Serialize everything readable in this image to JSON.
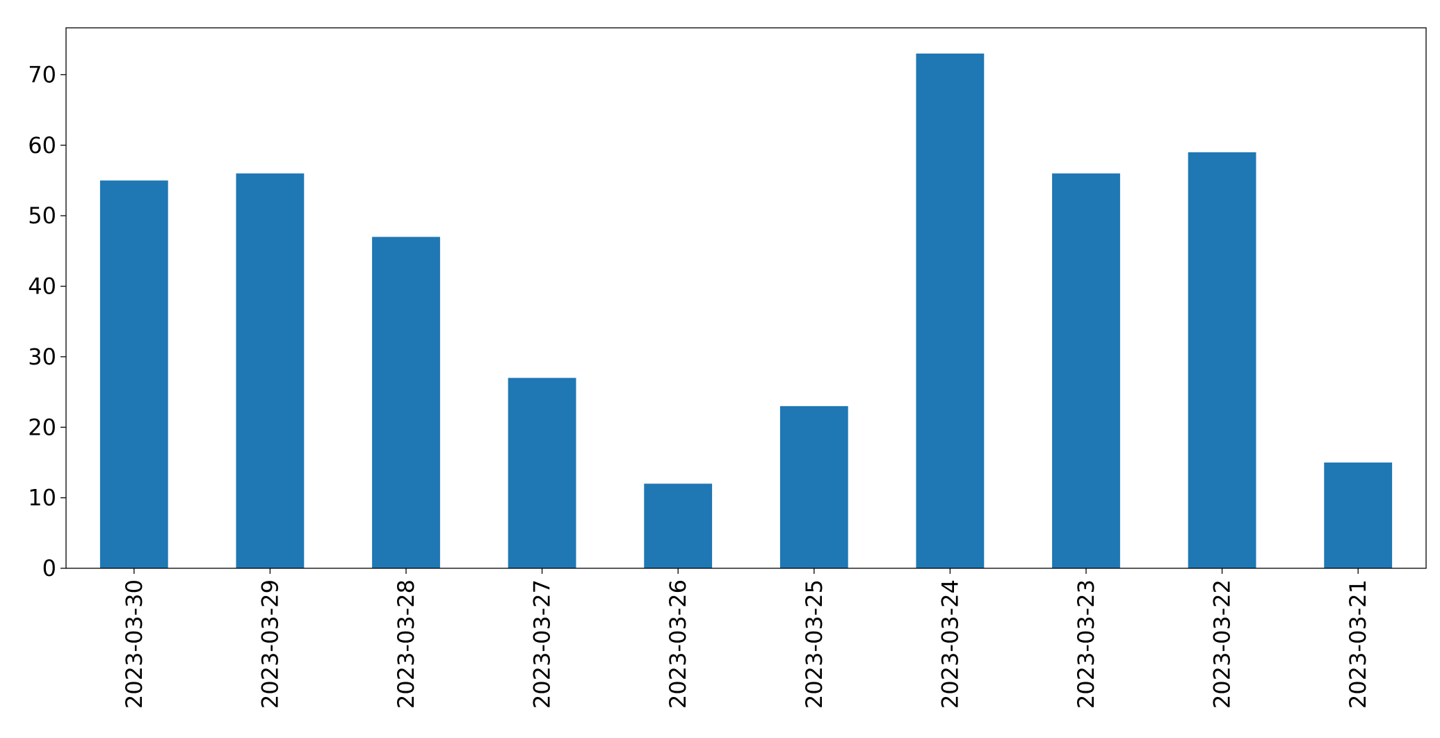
{
  "chart_data": {
    "type": "bar",
    "categories": [
      "2023-03-30",
      "2023-03-29",
      "2023-03-28",
      "2023-03-27",
      "2023-03-26",
      "2023-03-25",
      "2023-03-24",
      "2023-03-23",
      "2023-03-22",
      "2023-03-21"
    ],
    "values": [
      55,
      56,
      47,
      27,
      12,
      23,
      73,
      56,
      59,
      15
    ],
    "color": "#1f77b4",
    "ylim": [
      0,
      76.65
    ],
    "yticks": [
      0,
      10,
      20,
      30,
      40,
      50,
      60,
      70
    ],
    "grid": false
  }
}
